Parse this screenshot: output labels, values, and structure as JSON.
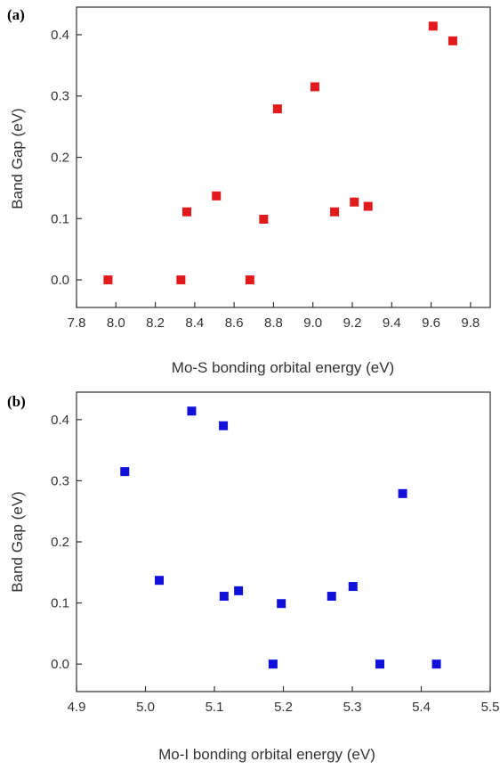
{
  "chart_data": [
    {
      "type": "scatter",
      "panel_label": "(a)",
      "xlabel": "Mo-S bonding orbital energy (eV)",
      "ylabel": "Band Gap (eV)",
      "xlim": [
        7.8,
        9.9
      ],
      "ylim": [
        -0.045,
        0.445
      ],
      "xticks": [
        "7.8",
        "8.0",
        "8.2",
        "8.4",
        "8.6",
        "8.8",
        "9.0",
        "9.2",
        "9.4",
        "9.6",
        "9.8"
      ],
      "yticks": [
        "0.0",
        "0.1",
        "0.2",
        "0.3",
        "0.4"
      ],
      "color": "#e31a1c",
      "x": [
        7.96,
        8.33,
        8.36,
        8.51,
        8.68,
        8.75,
        8.82,
        9.01,
        9.11,
        9.21,
        9.28,
        9.61,
        9.71
      ],
      "y": [
        0.0,
        0.0,
        0.111,
        0.137,
        0.0,
        0.099,
        0.279,
        0.315,
        0.111,
        0.127,
        0.12,
        0.414,
        0.39
      ]
    },
    {
      "type": "scatter",
      "panel_label": "(b)",
      "xlabel": "Mo-I bonding orbital energy (eV)",
      "ylabel": "Band Gap (eV)",
      "xlim": [
        4.9,
        5.5
      ],
      "ylim": [
        -0.045,
        0.445
      ],
      "xticks": [
        "4.9",
        "5.0",
        "5.1",
        "5.2",
        "5.3",
        "5.4",
        "5.5"
      ],
      "yticks": [
        "0.0",
        "0.1",
        "0.2",
        "0.3",
        "0.4"
      ],
      "color": "#1010d8",
      "x": [
        4.97,
        5.02,
        5.067,
        5.113,
        5.114,
        5.135,
        5.185,
        5.197,
        5.27,
        5.301,
        5.34,
        5.373,
        5.422
      ],
      "y": [
        0.315,
        0.137,
        0.414,
        0.39,
        0.111,
        0.12,
        0.0,
        0.099,
        0.111,
        0.127,
        0.0,
        0.279,
        0.0
      ]
    }
  ]
}
